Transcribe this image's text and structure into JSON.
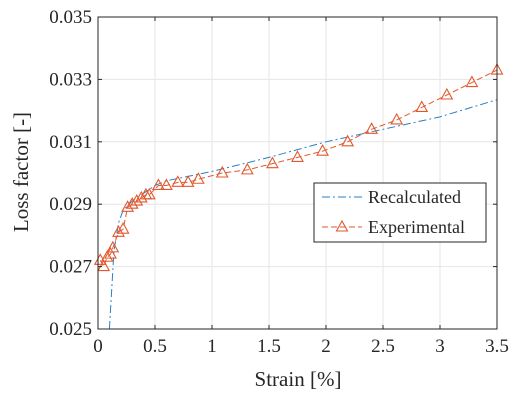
{
  "chart_data": {
    "type": "line",
    "title": "",
    "xlabel": "Strain [%]",
    "ylabel": "Loss factor [-]",
    "xlim": [
      0,
      3.5
    ],
    "ylim": [
      0.025,
      0.035
    ],
    "xticks": [
      0,
      0.5,
      1,
      1.5,
      2,
      2.5,
      3,
      3.5
    ],
    "xtick_labels": [
      "0",
      "0.5",
      "1",
      "1.5",
      "2",
      "2.5",
      "3",
      "3.5"
    ],
    "yticks": [
      0.025,
      0.027,
      0.029,
      0.031,
      0.033,
      0.035
    ],
    "ytick_labels": [
      "0.025",
      "0.027",
      "0.029",
      "0.031",
      "0.033",
      "0.035"
    ],
    "grid": true,
    "legend_position": "center-right",
    "series": [
      {
        "name": "Recalculated",
        "color": "#2a7fc9",
        "line_style": "dash-dot",
        "marker": "none",
        "x": [
          0.1,
          0.14,
          0.18,
          0.22,
          0.26,
          0.3,
          0.35,
          0.4,
          0.5,
          0.6,
          0.8,
          1.0,
          1.5,
          2.0,
          2.5,
          3.0,
          3.5
        ],
        "y": [
          0.025,
          0.0275,
          0.0284,
          0.0288,
          0.02895,
          0.0291,
          0.0292,
          0.02935,
          0.0296,
          0.02975,
          0.0299,
          0.03005,
          0.0305,
          0.031,
          0.0314,
          0.0318,
          0.03235
        ]
      },
      {
        "name": "Experimental",
        "color": "#e2582c",
        "line_style": "dashed",
        "marker": "triangle",
        "x": [
          0.02,
          0.05,
          0.08,
          0.11,
          0.13,
          0.18,
          0.22,
          0.26,
          0.3,
          0.34,
          0.38,
          0.42,
          0.45,
          0.53,
          0.6,
          0.7,
          0.79,
          0.88,
          1.09,
          1.31,
          1.53,
          1.75,
          1.97,
          2.19,
          2.4,
          2.62,
          2.84,
          3.06,
          3.28,
          3.5
        ],
        "y": [
          0.0272,
          0.027,
          0.0273,
          0.0274,
          0.0276,
          0.0281,
          0.0282,
          0.0289,
          0.029,
          0.0291,
          0.0292,
          0.0293,
          0.0293,
          0.0296,
          0.0296,
          0.0297,
          0.0297,
          0.0298,
          0.03,
          0.0301,
          0.0303,
          0.0305,
          0.0307,
          0.031,
          0.0314,
          0.0317,
          0.0321,
          0.0325,
          0.0329,
          0.0333
        ]
      }
    ]
  }
}
